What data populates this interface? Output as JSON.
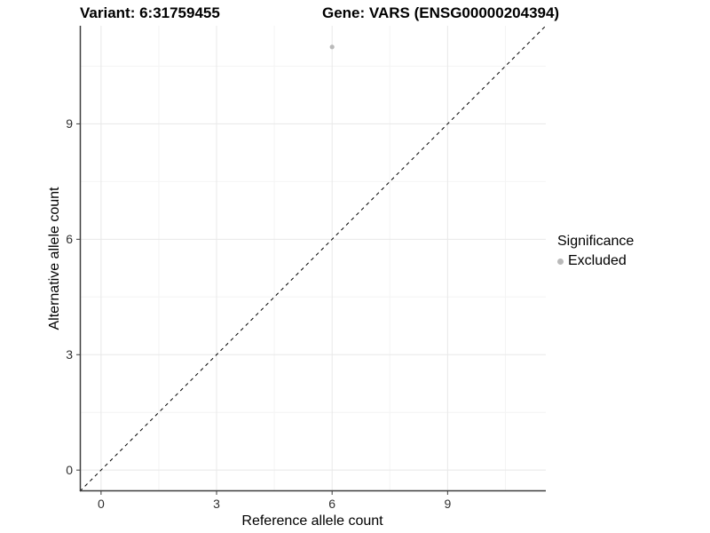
{
  "titles": {
    "left": "Variant: 6:31759455",
    "right": "Gene: VARS (ENSG00000204394)"
  },
  "legend": {
    "title": "Significance",
    "items": [
      {
        "label": "Excluded",
        "color": "#b9b9b9"
      }
    ]
  },
  "colors": {
    "major_grid": "#e8e8e8",
    "minor_grid": "#f4f4f4",
    "axis_line": "#3c3c3c",
    "tick_mark": "#3c3c3c",
    "reference_line": "#000000",
    "point": "#b9b9b9"
  },
  "chart_data": {
    "type": "scatter",
    "title_left": "Variant: 6:31759455",
    "title_right": "Gene: VARS (ENSG00000204394)",
    "xlabel": "Reference allele count",
    "ylabel": "Alternative allele count",
    "xlim": [
      -0.55,
      11.55
    ],
    "ylim": [
      -0.55,
      11.55
    ],
    "x_ticks": [
      0,
      3,
      6,
      9
    ],
    "y_ticks": [
      0,
      3,
      6,
      9
    ],
    "x_minor_ticks": [
      1.5,
      4.5,
      7.5,
      10.5
    ],
    "y_minor_ticks": [
      1.5,
      4.5,
      7.5,
      10.5
    ],
    "grid": true,
    "legend_title": "Significance",
    "legend_position": "right",
    "series": [
      {
        "name": "Excluded",
        "color": "#b9b9b9",
        "points": [
          {
            "x": 6,
            "y": 11
          }
        ]
      }
    ],
    "reference_line": {
      "kind": "identity",
      "slope": 1,
      "intercept": 0,
      "style": "dashed",
      "color": "#000000"
    }
  }
}
